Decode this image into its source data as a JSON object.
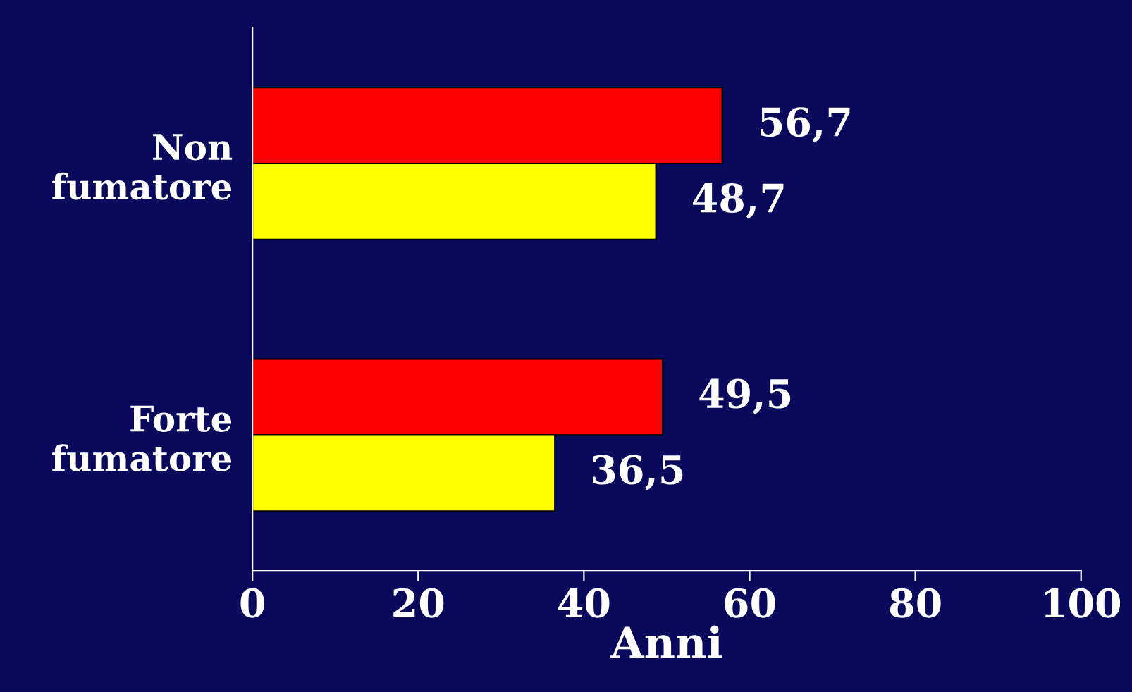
{
  "chart_data": {
    "type": "bar",
    "orientation": "horizontal",
    "xlabel": "Anni",
    "categories": [
      "Non fumatore",
      "Forte fumatore"
    ],
    "series": [
      {
        "color": "#ff0000",
        "values": [
          56.7,
          49.5
        ],
        "value_labels": [
          "56,7",
          "49,5"
        ]
      },
      {
        "color": "#ffff00",
        "values": [
          48.7,
          36.5
        ],
        "value_labels": [
          "48,7",
          "36,5"
        ]
      }
    ],
    "xlim": [
      0,
      100
    ],
    "xticks": [
      0,
      20,
      40,
      60,
      80,
      100
    ],
    "grid": false,
    "legend": false
  }
}
